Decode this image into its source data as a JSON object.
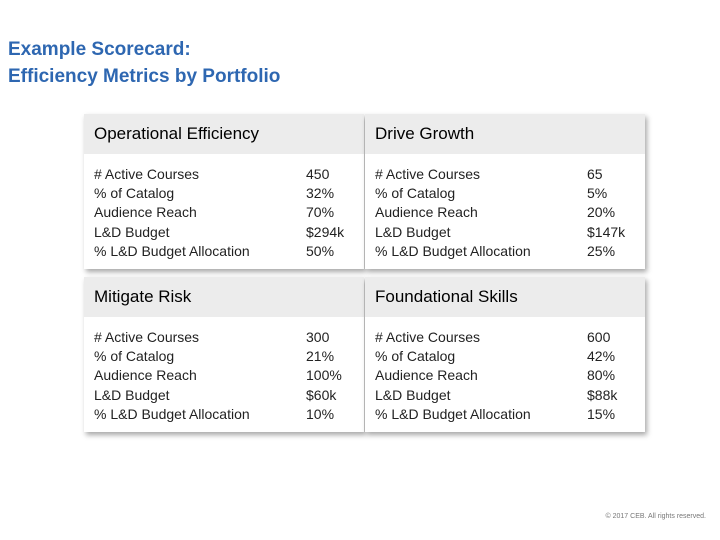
{
  "title_line1": "Example Scorecard:",
  "title_line2": "Efficiency Metrics by Portfolio",
  "quadrants": [
    {
      "header": "Operational Efficiency",
      "metrics": [
        "# Active Courses",
        "% of Catalog",
        "Audience Reach",
        "L&D Budget",
        "% L&D Budget Allocation"
      ],
      "values": [
        "450",
        "32%",
        "70%",
        "$294k",
        "50%"
      ]
    },
    {
      "header": "Drive Growth",
      "metrics": [
        "# Active Courses",
        "% of Catalog",
        "Audience Reach",
        "L&D Budget",
        "% L&D Budget Allocation"
      ],
      "values": [
        "65",
        "5%",
        "20%",
        "$147k",
        "25%"
      ]
    },
    {
      "header": "Mitigate Risk",
      "metrics": [
        "# Active Courses",
        "% of Catalog",
        "Audience Reach",
        "L&D Budget",
        "% L&D Budget Allocation"
      ],
      "values": [
        "300",
        "21%",
        "100%",
        "$60k",
        "10%"
      ]
    },
    {
      "header": "Foundational Skills",
      "metrics": [
        "# Active Courses",
        "% of Catalog",
        "Audience Reach",
        "L&D Budget",
        "% L&D Budget Allocation"
      ],
      "values": [
        "600",
        "42%",
        "80%",
        "$88k",
        "15%"
      ]
    }
  ],
  "footer": "© 2017 CEB. All rights reserved."
}
